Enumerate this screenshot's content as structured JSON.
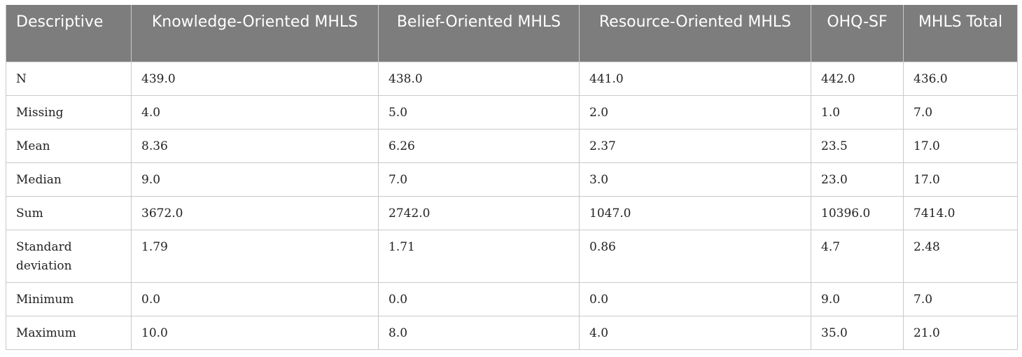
{
  "table": {
    "headers": [
      "Descriptive",
      "Knowledge-Oriented MHLS",
      "Belief-Oriented MHLS",
      "Resource-Oriented MHLS",
      "OHQ-SF",
      "MHLS Total"
    ],
    "rows": [
      [
        "N",
        "439.0",
        "438.0",
        "441.0",
        "442.0",
        "436.0"
      ],
      [
        "Missing",
        "4.0",
        "5.0",
        "2.0",
        "1.0",
        "7.0"
      ],
      [
        "Mean",
        "8.36",
        "6.26",
        "2.37",
        "23.5",
        "17.0"
      ],
      [
        "Median",
        "9.0",
        "7.0",
        "3.0",
        "23.0",
        "17.0"
      ],
      [
        "Sum",
        "3672.0",
        "2742.0",
        "1047.0",
        "10396.0",
        "7414.0"
      ],
      [
        "Standard deviation",
        "1.79",
        "1.71",
        "0.86",
        "4.7",
        "2.48"
      ],
      [
        "Minimum",
        "0.0",
        "0.0",
        "0.0",
        "9.0",
        "7.0"
      ],
      [
        "Maximum",
        "10.0",
        "8.0",
        "4.0",
        "35.0",
        "21.0"
      ]
    ]
  },
  "colors": {
    "header_background": "#7d7d7d",
    "header_text": "#ffffff",
    "grid_lines": "#c9c9c9"
  }
}
